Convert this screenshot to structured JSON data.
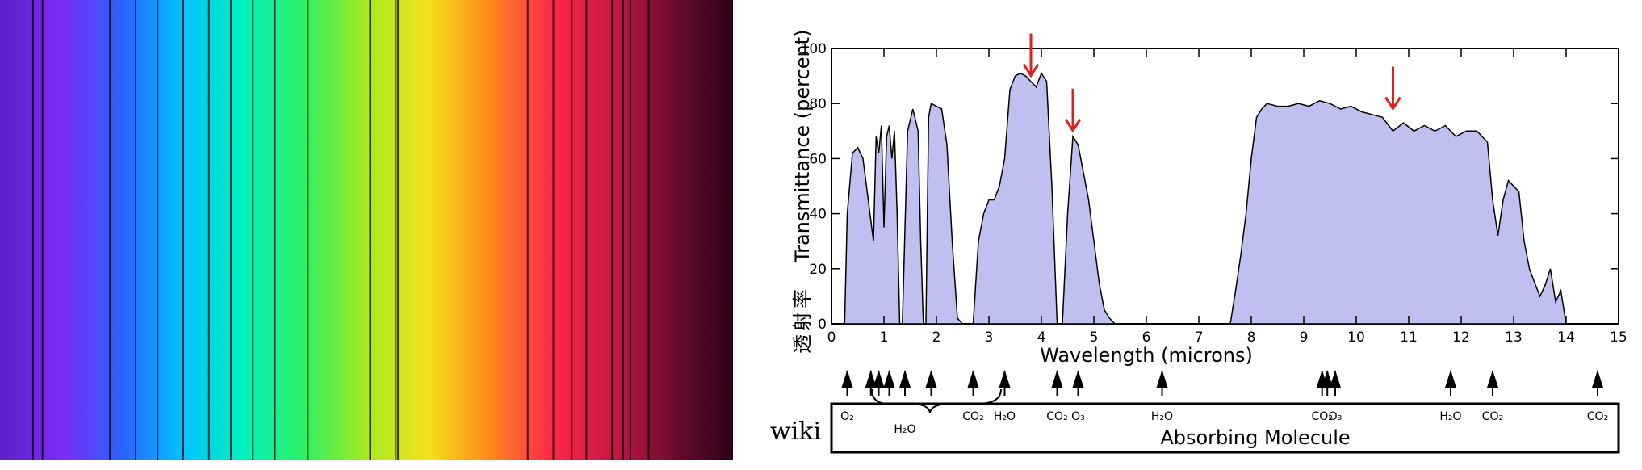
{
  "spectrum": {
    "colors": [
      "#5a22c8",
      "#7d2bf5",
      "#2b63ff",
      "#00c3ff",
      "#00f2b9",
      "#2fef62",
      "#a6ea1f",
      "#f4e11d",
      "#ff8a1a",
      "#ff2a48",
      "#c91845",
      "#6e0c30",
      "#2a0219"
    ],
    "lines": [
      0.045,
      0.058,
      0.15,
      0.185,
      0.215,
      0.25,
      0.285,
      0.315,
      0.345,
      0.375,
      0.42,
      0.505,
      0.54,
      0.543,
      0.72,
      0.755,
      0.78,
      0.8,
      0.835,
      0.85,
      0.86,
      0.885
    ]
  },
  "chart_data": {
    "type": "area",
    "xlabel": "Wavelength (microns)",
    "ylabel": "Transmittance (percent)",
    "ylabel_cjk": "透射率",
    "xlim": [
      0,
      15
    ],
    "ylim": [
      0,
      100
    ],
    "xticks": [
      0,
      1,
      2,
      3,
      4,
      5,
      6,
      7,
      8,
      9,
      10,
      11,
      12,
      13,
      14,
      15
    ],
    "yticks": [
      0,
      20,
      40,
      60,
      80,
      100
    ],
    "grid": false,
    "fill_color": "#bfc0f0",
    "line_color": "#000000",
    "arrow_color": "#e0211d",
    "series": [
      {
        "x": [
          0.25,
          0.3,
          0.4,
          0.5,
          0.6,
          0.7,
          0.8,
          0.85,
          0.9,
          0.95,
          1.0,
          1.05,
          1.1,
          1.15,
          1.2,
          1.25,
          1.3,
          1.35,
          1.45,
          1.55,
          1.65,
          1.7,
          1.75,
          1.8,
          1.85,
          1.9,
          2.0,
          2.1,
          2.2,
          2.3,
          2.4,
          2.5,
          2.6,
          2.7,
          2.8,
          2.9,
          3.0,
          3.1,
          3.2,
          3.3,
          3.4,
          3.5,
          3.6,
          3.7,
          3.8,
          3.9,
          4.0,
          4.1,
          4.2,
          4.3,
          4.4,
          4.5,
          4.6,
          4.7,
          4.8,
          4.9,
          5.0,
          5.1,
          5.2,
          5.3,
          5.4,
          5.5,
          7.0,
          7.6,
          7.7,
          7.8,
          7.9,
          8.0,
          8.1,
          8.2,
          8.3,
          8.5,
          8.7,
          8.9,
          9.1,
          9.3,
          9.5,
          9.7,
          9.9,
          10.1,
          10.3,
          10.5,
          10.7,
          10.9,
          11.1,
          11.3,
          11.5,
          11.7,
          11.9,
          12.1,
          12.3,
          12.5,
          12.6,
          12.7,
          12.8,
          12.9,
          13.0,
          13.1,
          13.2,
          13.3,
          13.4,
          13.5,
          13.6,
          13.7,
          13.8,
          13.9,
          14.0
        ],
        "y": [
          0,
          40,
          62,
          64,
          60,
          45,
          30,
          68,
          62,
          72,
          35,
          68,
          72,
          60,
          70,
          40,
          0,
          0,
          70,
          78,
          70,
          30,
          0,
          0,
          75,
          80,
          79,
          78,
          65,
          30,
          2,
          0,
          0,
          0,
          30,
          40,
          45,
          45,
          50,
          60,
          85,
          90,
          91,
          90,
          88,
          86,
          91,
          88,
          50,
          0,
          0,
          40,
          68,
          65,
          55,
          45,
          30,
          15,
          5,
          2,
          0,
          0,
          0,
          0,
          12,
          25,
          40,
          60,
          75,
          78,
          80,
          79,
          79,
          80,
          79,
          81,
          80,
          78,
          79,
          77,
          76,
          75,
          70,
          73,
          70,
          72,
          70,
          72,
          68,
          70,
          70,
          66,
          45,
          32,
          45,
          52,
          50,
          48,
          30,
          20,
          15,
          10,
          14,
          20,
          8,
          12,
          0
        ]
      }
    ],
    "arrows": [
      {
        "x": 3.8,
        "y": 89
      },
      {
        "x": 4.6,
        "y": 69
      },
      {
        "x": 10.7,
        "y": 77
      }
    ],
    "absorbing_title": "Absorbing Molecule",
    "source": "wiki",
    "molecules": [
      {
        "x": 0.3,
        "label": "O₂"
      },
      {
        "x": 0.75,
        "label": ""
      },
      {
        "x": 0.9,
        "label": ""
      },
      {
        "x": 1.1,
        "label": ""
      },
      {
        "x": 1.4,
        "label": ""
      },
      {
        "x": 1.9,
        "label": ""
      },
      {
        "x": 1.4,
        "label": "H₂O"
      },
      {
        "x": 2.7,
        "label": "CO₂"
      },
      {
        "x": 3.3,
        "label": "H₂O"
      },
      {
        "x": 4.3,
        "label": "CO₂"
      },
      {
        "x": 4.7,
        "label": "O₃"
      },
      {
        "x": 6.3,
        "label": "H₂O"
      },
      {
        "x": 9.35,
        "label": "CO₂"
      },
      {
        "x": 9.45,
        "label": ""
      },
      {
        "x": 9.6,
        "label": "O₃"
      },
      {
        "x": 11.8,
        "label": "H₂O"
      },
      {
        "x": 12.6,
        "label": "CO₂"
      },
      {
        "x": 14.6,
        "label": "CO₂"
      }
    ]
  }
}
